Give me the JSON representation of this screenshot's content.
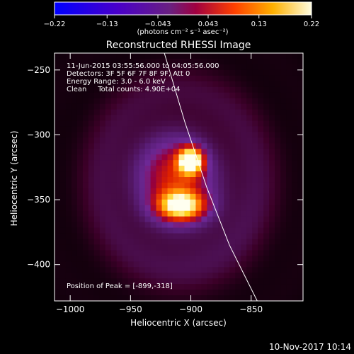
{
  "chart_data": {
    "type": "heatmap",
    "title": "Reconstructed RHESSI Image",
    "xlabel": "Heliocentric X (arcsec)",
    "ylabel": "Heliocentric Y (arcsec)",
    "xlim": [
      -1013,
      -807
    ],
    "ylim": [
      -428,
      -237
    ],
    "x_ticks": [
      -1000,
      -950,
      -900,
      -850
    ],
    "y_ticks": [
      -250,
      -300,
      -350,
      -400
    ],
    "x_tick_labels": [
      "−1000",
      "−950",
      "−900",
      "−850"
    ],
    "y_tick_labels": [
      "−250",
      "−300",
      "−350",
      "−400"
    ],
    "colorbar": {
      "min": -0.22,
      "max": 0.22,
      "ticks": [
        -0.22,
        -0.13,
        -0.043,
        0.043,
        0.13,
        0.22
      ],
      "tick_labels": [
        "−0.22",
        "−0.13",
        "−0.043",
        "0.043",
        "0.13",
        "0.22"
      ],
      "label": "(photons cm⁻² s⁻¹ asec⁻²)"
    },
    "annotations": [
      "11-Jun-2015 03:55:56.000 to 04:05:56.000",
      "Detectors: 3F 5F 6F 7F 8F 9F, Att 0",
      "Energy Range: 3.0 - 6.0 keV",
      "Clean     Total counts: 4.90E+04"
    ],
    "peak_label": "Position of Peak = [-899,-318]",
    "peak": [
      -899,
      -318
    ],
    "sources": [
      {
        "x": -900,
        "y": -320,
        "sigma": 7,
        "amp": 0.19
      },
      {
        "x": -908,
        "y": -355,
        "sigma_x": 14,
        "sigma_y": 8,
        "amp": 0.155
      },
      {
        "x": -915,
        "y": -330,
        "sigma": 24,
        "amp": 0.09
      },
      {
        "x": -905,
        "y": -345,
        "sigma": 36,
        "amp": 0.05
      }
    ],
    "limb_arc": [
      [
        -922,
        -237
      ],
      [
        -905,
        -290
      ],
      [
        -887,
        -340
      ],
      [
        -868,
        -385
      ],
      [
        -845,
        -428
      ]
    ]
  },
  "footer": {
    "timestamp": "10-Nov-2017 10:14"
  },
  "colors": {
    "background": "#000000",
    "text": "#ffffff",
    "colormap": [
      "#0000ff",
      "#4a00c8",
      "#5a1fa0",
      "#7a2a80",
      "#c00020",
      "#ff6000",
      "#ffd000",
      "#ffffff"
    ]
  }
}
